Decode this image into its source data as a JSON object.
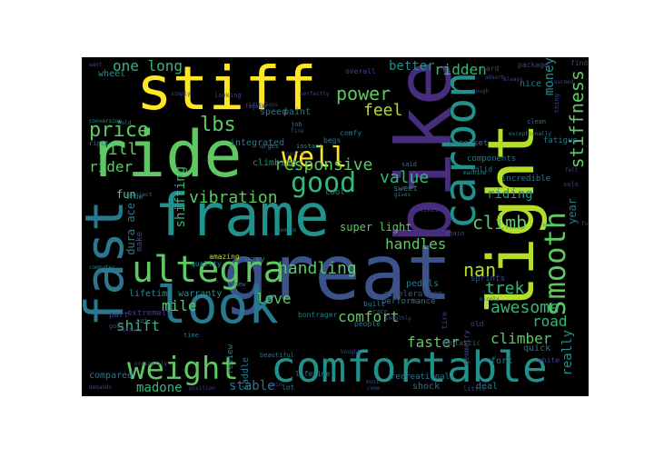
{
  "figure": {
    "background_color": "#ffffff",
    "cloud_background_color": "#000000",
    "colormap": "viridis"
  },
  "words": {
    "great": "great",
    "bike": "bike",
    "stiff": "stiff",
    "ride": "ride",
    "frame": "frame",
    "light": "light",
    "comfortable": "comfortable",
    "look": "look",
    "fast": "fast",
    "carbon": "carbon",
    "ultegra": "ultegra",
    "weight": "weight",
    "smooth": "smooth",
    "well": "well",
    "good": "good",
    "responsive": "responsive",
    "stiffness": "stiffness",
    "handling": "handling",
    "climb": "climb",
    "power": "power",
    "price": "price",
    "lbs": "lbs",
    "hill": "hill",
    "rider": "rider",
    "feel": "feel",
    "trek": "trek",
    "nan": "nan",
    "ridden": "ridden",
    "better": "better",
    "money": "money",
    "value": "value",
    "handles": "handles",
    "vibration": "vibration",
    "mile": "mile",
    "love": "love",
    "comfort": "comfort",
    "faster": "faster",
    "climber": "climber",
    "road": "road",
    "really": "really",
    "shift": "shift",
    "madone": "madone",
    "stable": "stable",
    "awesome": "awesome",
    "riding": "riding",
    "one_long": "one long",
    "shifting": "shifting",
    "super_light": "super light",
    "lifetime_warranty": "lifetime warranty",
    "fun": "fun",
    "year": "year",
    "dura_ace": "dura ace",
    "compared": "compared",
    "wheel": "wheel",
    "integrated": "integrated",
    "climbing": "climbing",
    "components": "components",
    "performance": "performance",
    "recreational": "recreational",
    "bontrager": "bontrager",
    "fork": "fork",
    "pedals": "pedals",
    "quick": "quick",
    "shock": "shock",
    "deal": "deal",
    "lot": "lot",
    "saddle": "saddle",
    "review": "review",
    "part": "part",
    "extremely": "extremely",
    "speed": "speed",
    "paint": "paint",
    "cool": "cool",
    "geometry": "geometry",
    "tire": "tire",
    "hard": "hard",
    "nice": "nice",
    "fatigue": "fatigue",
    "incredible": "incredible",
    "make": "make",
    "easy": "easy",
    "quality": "quality",
    "amazing": "amazing",
    "fantastic": "fantastic",
    "solid": "solid",
    "sprints": "sprints",
    "acceleration": "acceleration",
    "wheelset": "wheelset",
    "machine": "machine",
    "package": "package",
    "find": "find",
    "people": "people",
    "old": "old",
    "little": "little",
    "white": "white",
    "built": "built",
    "race": "race",
    "job": "job",
    "sweet": "sweet",
    "true": "true",
    "new": "new",
    "time": "time",
    "put": "put",
    "goes": "goes",
    "computer": "computer",
    "rigid": "rigid",
    "want": "want",
    "project": "project",
    "begs": "begs",
    "comfy": "comfy",
    "said": "said",
    "solo": "solo",
    "thing": "thing",
    "chain": "chain",
    "likes": "likes",
    "conversion": "conversion",
    "absorb": "absorb",
    "gives": "gives",
    "must": "must",
    "come": "come",
    "months": "months",
    "position": "position",
    "others": "others",
    "looking": "looking",
    "overall": "overall",
    "urges": "urges",
    "nearly": "nearly",
    "tough": "tough",
    "regular": "regular",
    "perfectly": "perfectly",
    "touched": "touched",
    "always": "always",
    "exceptionally": "exceptionally",
    "lifetime": "lifetime",
    "bought": "bought",
    "four": "four",
    "nicely": "nicely",
    "simply": "simply",
    "instant": "instant",
    "beautiful": "beautiful",
    "gain": "gain",
    "demands": "demands",
    "ordinarily": "ordinarily",
    "hold": "hold",
    "clean": "clean",
    "smoothly": "smoothly",
    "fine": "fine",
    "felt": "felt",
    "ridiculous": "ridiculous"
  },
  "colors": {
    "yellow": "#fde725",
    "yellow_green": "#b5de2b",
    "green": "#5ec962",
    "light_teal": "#35b779",
    "teal": "#21918c",
    "blue_teal": "#2a788e",
    "blue": "#3b528b",
    "indigo": "#414487",
    "purple": "#472d7b",
    "dark_purple": "#440154"
  }
}
